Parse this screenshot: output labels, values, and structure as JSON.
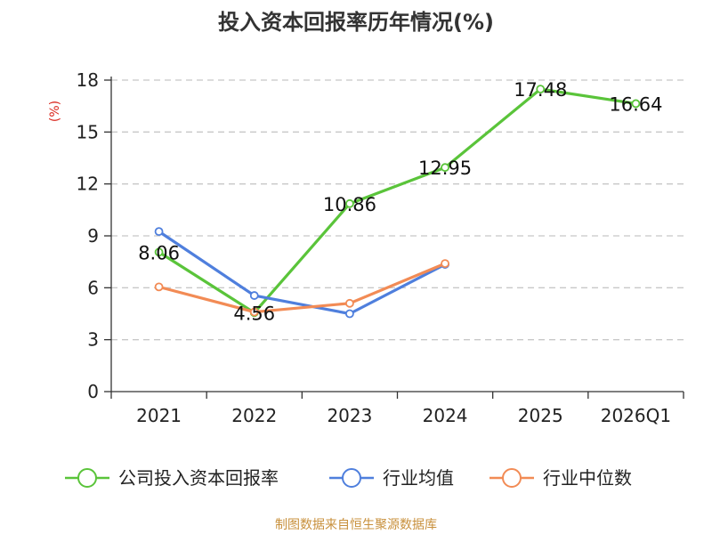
{
  "chart_data": {
    "type": "line",
    "title": "投入资本回报率历年情况(%)",
    "unit": "(%)",
    "categories": [
      "2021",
      "2022",
      "2023",
      "2024",
      "2025",
      "2026Q1"
    ],
    "ylim": [
      0,
      18
    ],
    "yticks": [
      0,
      3,
      6,
      9,
      12,
      15,
      18
    ],
    "grid": true,
    "legend_position": "bottom",
    "series": [
      {
        "name": "公司投入资本回报率",
        "color": "#5ac43a",
        "values": [
          8.06,
          4.56,
          10.86,
          12.95,
          17.48,
          16.64
        ],
        "labels": [
          "8.06",
          "4.56",
          "10.86",
          "12.95",
          "17.48",
          "16.64"
        ]
      },
      {
        "name": "行业均值",
        "color": "#4f7fdd",
        "values": [
          9.25,
          5.55,
          4.5,
          7.35,
          null,
          null
        ]
      },
      {
        "name": "行业中位数",
        "color": "#f28b55",
        "values": [
          6.05,
          4.6,
          5.1,
          7.4,
          null,
          null
        ]
      }
    ],
    "source": "制图数据来自恒生聚源数据库"
  }
}
